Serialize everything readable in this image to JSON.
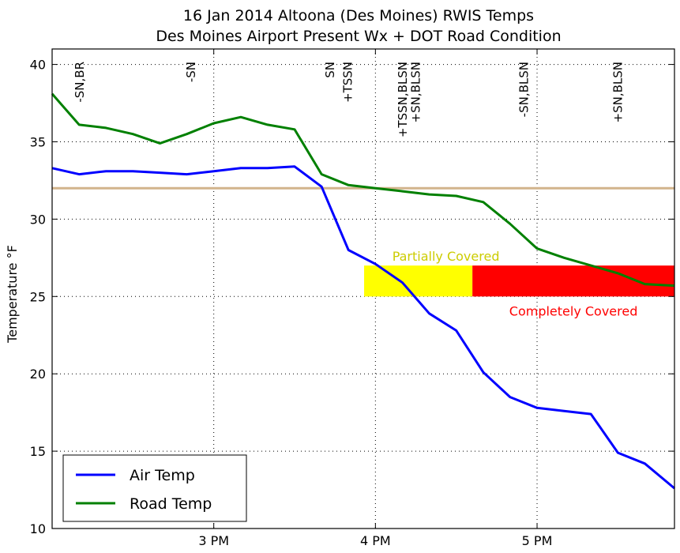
{
  "chart_data": {
    "type": "line",
    "title": "16 Jan 2014 Altoona (Des Moines) RWIS Temps",
    "subtitle": "Des Moines Airport Present Wx + DOT Road Condition",
    "ylabel": "Temperature $^\\circ$F",
    "ylabel_text": "Temperature",
    "ylabel_unit": "°F",
    "xlabel": "",
    "xlim": [
      2.0,
      5.85
    ],
    "ylim": [
      10,
      41
    ],
    "x_ticks": [
      {
        "value": 3,
        "label": "3 PM"
      },
      {
        "value": 4,
        "label": "4 PM"
      },
      {
        "value": 5,
        "label": "5 PM"
      }
    ],
    "y_ticks": [
      10,
      15,
      20,
      25,
      30,
      35,
      40
    ],
    "grid": true,
    "legend_position": "lower-left",
    "series": [
      {
        "name": "Air Temp",
        "color": "#0000ff",
        "x": [
          2.0,
          2.167,
          2.333,
          2.5,
          2.667,
          2.833,
          3.0,
          3.167,
          3.333,
          3.5,
          3.667,
          3.833,
          4.0,
          4.167,
          4.333,
          4.5,
          4.667,
          4.833,
          5.0,
          5.167,
          5.333,
          5.5,
          5.667,
          5.85
        ],
        "values": [
          33.3,
          32.9,
          33.1,
          33.1,
          33.0,
          32.9,
          33.1,
          33.3,
          33.3,
          33.4,
          32.1,
          28.0,
          27.1,
          25.9,
          23.9,
          22.8,
          20.1,
          18.5,
          17.8,
          17.6,
          17.4,
          14.9,
          14.2,
          12.6
        ]
      },
      {
        "name": "Road Temp",
        "color": "#008000",
        "x": [
          2.0,
          2.167,
          2.333,
          2.5,
          2.667,
          2.833,
          3.0,
          3.167,
          3.333,
          3.5,
          3.667,
          3.833,
          4.0,
          4.167,
          4.333,
          4.5,
          4.667,
          4.833,
          5.0,
          5.167,
          5.333,
          5.5,
          5.667,
          5.85
        ],
        "values": [
          38.1,
          36.1,
          35.9,
          35.5,
          34.9,
          35.5,
          36.2,
          36.6,
          36.1,
          35.8,
          32.9,
          32.2,
          32.0,
          31.8,
          31.6,
          31.5,
          31.1,
          29.7,
          28.1,
          27.5,
          27.0,
          26.5,
          25.8,
          25.7
        ]
      }
    ],
    "reference_line": {
      "y": 32,
      "color": "#d2b48c"
    },
    "weather_labels": [
      {
        "x": 2.17,
        "text": "-SN,BR"
      },
      {
        "x": 2.86,
        "text": "-SN"
      },
      {
        "x": 3.72,
        "text": "SN"
      },
      {
        "x": 3.83,
        "text": "+TSSN"
      },
      {
        "x": 4.17,
        "text": "+TSSN,BLSN"
      },
      {
        "x": 4.25,
        "text": "+SN,BLSN"
      },
      {
        "x": 4.92,
        "text": "-SN,BLSN"
      },
      {
        "x": 5.5,
        "text": "+SN,BLSN"
      }
    ],
    "road_conditions": [
      {
        "label": "Partially Covered",
        "x_start": 3.93,
        "x_end": 4.6,
        "y_low": 25,
        "y_high": 27,
        "color": "#ffff00",
        "label_color": "#cccc00",
        "label_position": "above"
      },
      {
        "label": "Completely Covered",
        "x_start": 4.6,
        "x_end": 5.85,
        "y_low": 25,
        "y_high": 27,
        "color": "#ff0000",
        "label_color": "#ff0000",
        "label_position": "below"
      }
    ]
  }
}
